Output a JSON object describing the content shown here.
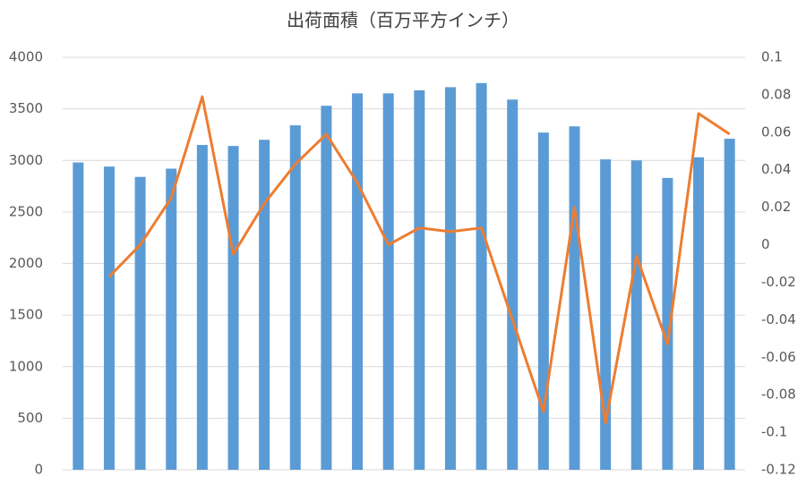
{
  "chart_data": {
    "type": "bar-line",
    "title": "出荷面積（百万平方インチ）",
    "categories": [
      null,
      null,
      null,
      null,
      null,
      null,
      null,
      null,
      null,
      null,
      null,
      null,
      null,
      null,
      null,
      null,
      null,
      null,
      null,
      null,
      null,
      null
    ],
    "series": [
      {
        "type": "bar",
        "color": "#5b9bd5",
        "values": [
          2980,
          2940,
          2840,
          2920,
          3150,
          3140,
          3200,
          3340,
          3530,
          3650,
          3650,
          3680,
          3710,
          3750,
          3590,
          3270,
          3330,
          3010,
          3000,
          2830,
          3030,
          3210
        ]
      },
      {
        "type": "line",
        "axis": "y2",
        "color": "#ed7d31",
        "values": [
          null,
          -0.017,
          0.0,
          0.025,
          0.079,
          -0.005,
          0.022,
          0.043,
          0.059,
          0.033,
          0.0,
          0.009,
          0.007,
          0.009,
          -0.04,
          -0.089,
          0.02,
          -0.095,
          -0.006,
          -0.053,
          0.07,
          0.059
        ]
      }
    ],
    "ylim": [
      0,
      4000
    ],
    "yticks": [
      0,
      500,
      1000,
      1500,
      2000,
      2500,
      3000,
      3500,
      4000
    ],
    "y2lim": [
      -0.12,
      0.1
    ],
    "y2ticks": [
      -0.12,
      -0.1,
      -0.08,
      -0.06,
      -0.04,
      -0.02,
      0,
      0.02,
      0.04,
      0.06,
      0.08,
      0.1
    ],
    "grid": true
  }
}
